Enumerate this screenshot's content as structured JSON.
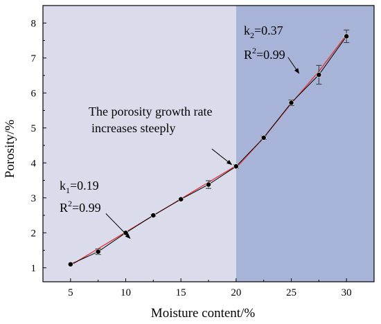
{
  "chart_data": {
    "type": "scatter",
    "xlabel": "Moisture content/%",
    "ylabel": "Porosity/%",
    "xlim": [
      2.5,
      32.5
    ],
    "ylim": [
      0.6,
      8.5
    ],
    "x_ticks": [
      "5",
      "10",
      "15",
      "20",
      "25",
      "30"
    ],
    "y_ticks": [
      "1",
      "2",
      "3",
      "4",
      "5",
      "6",
      "7",
      "8"
    ],
    "grid": false,
    "regions": [
      {
        "x_from": 2.5,
        "x_to": 20,
        "color": "#dadcec"
      },
      {
        "x_from": 20,
        "x_to": 32.5,
        "color": "#a7b4d8"
      }
    ],
    "series": [
      {
        "x": [
          5,
          7.5,
          10,
          12.5,
          15,
          17.5,
          20,
          22.5,
          25,
          27.5,
          30
        ],
        "y": [
          1.1,
          1.46,
          2.0,
          2.5,
          2.96,
          3.38,
          3.9,
          4.72,
          5.72,
          6.52,
          7.62
        ],
        "error": [
          0,
          0.08,
          0.04,
          0.03,
          0.02,
          0.11,
          0.05,
          0.05,
          0.08,
          0.27,
          0.18
        ],
        "marker_color": "#000000",
        "line_color": "#000000"
      }
    ],
    "fits": [
      {
        "x": [
          5,
          20
        ],
        "y": [
          1.07,
          3.92
        ],
        "color": "#e0383c"
      },
      {
        "x": [
          20,
          22.5,
          25,
          27.5,
          30
        ],
        "y": [
          3.86,
          4.72,
          5.7,
          6.62,
          7.66
        ],
        "color": "#e0383c"
      }
    ],
    "annotations": {
      "k1": {
        "letter": "k",
        "sub": "1",
        "rest": "=0.19"
      },
      "r2_left": {
        "letter": "R",
        "sup": "2",
        "rest": "=0.99"
      },
      "k2": {
        "letter": "k",
        "sub": "2",
        "rest": "=0.37"
      },
      "r2_right": {
        "letter": "R",
        "sup": "2",
        "rest": "=0.99"
      },
      "growth_line1": "The porosity growth rate",
      "growth_line2": "increases steeply"
    },
    "arrows": [
      {
        "from": [
          8.2,
          2.55
        ],
        "to": [
          10.4,
          1.84
        ]
      },
      {
        "from": [
          17.8,
          4.4
        ],
        "to": [
          19.6,
          3.95
        ]
      },
      {
        "from": [
          24.7,
          7.02
        ],
        "to": [
          25.7,
          6.56
        ]
      }
    ]
  }
}
